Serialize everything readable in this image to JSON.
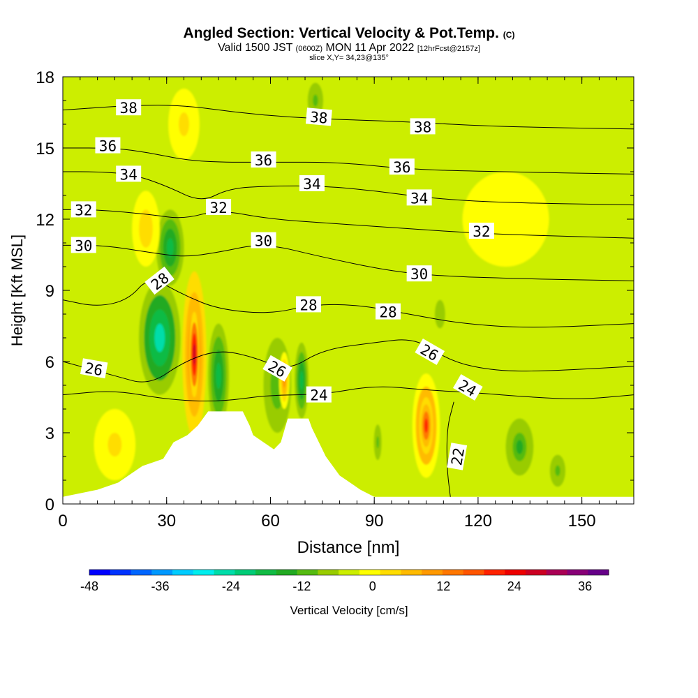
{
  "header": {
    "title_main": "Angled Section: Vertical Velocity & Pot.Temp.",
    "title_suffix": "(C)",
    "valid_prefix": "Valid 1500 JST",
    "valid_utc": "(0600Z)",
    "valid_date": "MON 11 Apr 2022",
    "valid_fcst": "[12hrFcst@2157z]",
    "slice": "slice X,Y= 34,23@135°"
  },
  "chart_data": {
    "type": "heatmap",
    "xlabel": "Distance [nm]",
    "ylabel": "Height [Kft MSL]",
    "xlim": [
      0,
      165
    ],
    "ylim": [
      0,
      18
    ],
    "x_ticks": [
      0,
      30,
      60,
      90,
      120,
      150
    ],
    "y_ticks": [
      0,
      3,
      6,
      9,
      12,
      15,
      18
    ],
    "background_value_cm_s": 2,
    "vertical_velocity_cells": [
      {
        "x": 28,
        "y": 7.0,
        "rx": 6,
        "ry": 2.4,
        "w": -22
      },
      {
        "x": 31,
        "y": 10.8,
        "rx": 4,
        "ry": 1.6,
        "w": -14
      },
      {
        "x": 45,
        "y": 5.4,
        "rx": 3,
        "ry": 2.2,
        "w": -16
      },
      {
        "x": 62,
        "y": 5.0,
        "rx": 4,
        "ry": 2.0,
        "w": -8
      },
      {
        "x": 69,
        "y": 5.2,
        "rx": 2,
        "ry": 1.6,
        "w": -16
      },
      {
        "x": 109,
        "y": 8.0,
        "rx": 2,
        "ry": 0.8,
        "w": -4
      },
      {
        "x": 132,
        "y": 2.4,
        "rx": 4,
        "ry": 1.2,
        "w": -10
      },
      {
        "x": 143,
        "y": 1.4,
        "rx": 3,
        "ry": 0.9,
        "w": -6
      },
      {
        "x": 91,
        "y": 2.6,
        "rx": 1.5,
        "ry": 1.0,
        "w": -6
      },
      {
        "x": 38,
        "y": 6.3,
        "rx": 3.5,
        "ry": 3.5,
        "w": 28
      },
      {
        "x": 38,
        "y": 6.3,
        "rx": 1.5,
        "ry": 1.8,
        "w": 38
      },
      {
        "x": 24,
        "y": 11.6,
        "rx": 4,
        "ry": 1.6,
        "w": 10
      },
      {
        "x": 35,
        "y": 16.0,
        "rx": 6,
        "ry": 2.0,
        "w": 8
      },
      {
        "x": 64,
        "y": 5.2,
        "rx": 1.5,
        "ry": 1.2,
        "w": 18
      },
      {
        "x": 105,
        "y": 3.3,
        "rx": 4,
        "ry": 2.2,
        "w": 24
      },
      {
        "x": 105,
        "y": 3.3,
        "rx": 2,
        "ry": 1.2,
        "w": 28
      },
      {
        "x": 15,
        "y": 2.5,
        "rx": 8,
        "ry": 2.0,
        "w": 8
      },
      {
        "x": 128,
        "y": 12.0,
        "rx": 25,
        "ry": 4,
        "w": 5
      },
      {
        "x": 73,
        "y": 17.0,
        "rx": 3,
        "ry": 1.0,
        "w": -6
      }
    ],
    "terrain_kft": [
      [
        0,
        0.3
      ],
      [
        10,
        0.6
      ],
      [
        16,
        0.9
      ],
      [
        20,
        1.3
      ],
      [
        23,
        1.6
      ],
      [
        29,
        1.9
      ],
      [
        32,
        2.6
      ],
      [
        36,
        2.9
      ],
      [
        39,
        3.3
      ],
      [
        42,
        3.9
      ],
      [
        52,
        3.9
      ],
      [
        54,
        3.3
      ],
      [
        55,
        2.9
      ],
      [
        58,
        2.6
      ],
      [
        61,
        2.3
      ],
      [
        63,
        2.6
      ],
      [
        65,
        3.6
      ],
      [
        71,
        3.6
      ],
      [
        72,
        3.2
      ],
      [
        74,
        2.6
      ],
      [
        76,
        2.0
      ],
      [
        78,
        1.6
      ],
      [
        80,
        1.2
      ],
      [
        83,
        0.9
      ],
      [
        86,
        0.6
      ],
      [
        90,
        0.3
      ],
      [
        165,
        0.3
      ]
    ],
    "theta_contours": [
      {
        "label": "22",
        "points": [
          [
            112,
            0.3
          ],
          [
            111,
            1.5
          ],
          [
            111,
            3.2
          ],
          [
            113,
            4.3
          ]
        ]
      },
      {
        "label": "24",
        "points": [
          [
            0,
            4.6
          ],
          [
            15,
            4.8
          ],
          [
            30,
            4.4
          ],
          [
            45,
            4.3
          ],
          [
            60,
            4.6
          ],
          [
            75,
            4.6
          ],
          [
            90,
            5.0
          ],
          [
            105,
            4.8
          ],
          [
            118,
            4.7
          ],
          [
            135,
            4.5
          ],
          [
            150,
            4.4
          ],
          [
            165,
            4.6
          ]
        ]
      },
      {
        "label": "26",
        "points": [
          [
            0,
            6.0
          ],
          [
            15,
            5.4
          ],
          [
            25,
            5.0
          ],
          [
            35,
            6.0
          ],
          [
            45,
            6.5
          ],
          [
            55,
            6.2
          ],
          [
            65,
            5.6
          ],
          [
            75,
            6.5
          ],
          [
            90,
            6.8
          ],
          [
            102,
            7.0
          ],
          [
            112,
            6.0
          ],
          [
            125,
            5.6
          ],
          [
            140,
            5.6
          ],
          [
            165,
            5.8
          ]
        ]
      },
      {
        "label": "28",
        "points": [
          [
            0,
            8.6
          ],
          [
            10,
            8.3
          ],
          [
            19,
            8.6
          ],
          [
            25,
            9.6
          ],
          [
            35,
            8.8
          ],
          [
            45,
            8.2
          ],
          [
            60,
            8.0
          ],
          [
            72,
            8.4
          ],
          [
            85,
            8.4
          ],
          [
            100,
            8.0
          ],
          [
            115,
            7.6
          ],
          [
            135,
            7.4
          ],
          [
            165,
            7.6
          ]
        ]
      },
      {
        "label": "30",
        "points": [
          [
            0,
            10.9
          ],
          [
            12,
            10.9
          ],
          [
            25,
            10.6
          ],
          [
            35,
            10.4
          ],
          [
            45,
            10.6
          ],
          [
            58,
            11.0
          ],
          [
            75,
            10.4
          ],
          [
            95,
            9.8
          ],
          [
            110,
            9.6
          ],
          [
            130,
            9.5
          ],
          [
            165,
            9.4
          ]
        ]
      },
      {
        "label": "32",
        "points": [
          [
            0,
            12.4
          ],
          [
            10,
            12.4
          ],
          [
            25,
            12.2
          ],
          [
            35,
            12.0
          ],
          [
            45,
            12.4
          ],
          [
            60,
            12.0
          ],
          [
            80,
            11.8
          ],
          [
            100,
            11.6
          ],
          [
            120,
            11.4
          ],
          [
            140,
            11.3
          ],
          [
            165,
            11.2
          ]
        ]
      },
      {
        "label": "34",
        "points": [
          [
            0,
            14.0
          ],
          [
            10,
            14.0
          ],
          [
            20,
            13.9
          ],
          [
            30,
            13.4
          ],
          [
            40,
            12.7
          ],
          [
            48,
            13.3
          ],
          [
            60,
            13.4
          ],
          [
            75,
            13.4
          ],
          [
            90,
            13.2
          ],
          [
            105,
            12.9
          ],
          [
            125,
            12.7
          ],
          [
            165,
            12.6
          ]
        ]
      },
      {
        "label": "36",
        "points": [
          [
            0,
            15.0
          ],
          [
            15,
            15.0
          ],
          [
            25,
            14.8
          ],
          [
            35,
            14.5
          ],
          [
            45,
            14.4
          ],
          [
            60,
            14.4
          ],
          [
            80,
            14.4
          ],
          [
            100,
            14.1
          ],
          [
            125,
            14.0
          ],
          [
            165,
            13.9
          ]
        ]
      },
      {
        "label": "38",
        "points": [
          [
            0,
            16.6
          ],
          [
            20,
            16.8
          ],
          [
            35,
            16.8
          ],
          [
            50,
            16.5
          ],
          [
            65,
            16.3
          ],
          [
            80,
            16.2
          ],
          [
            100,
            16.1
          ],
          [
            125,
            15.9
          ],
          [
            165,
            15.8
          ]
        ]
      }
    ],
    "theta_labels": [
      {
        "text": "38",
        "x": 19,
        "y": 16.7,
        "angle": 0
      },
      {
        "text": "38",
        "x": 74,
        "y": 16.3,
        "angle": 5
      },
      {
        "text": "38",
        "x": 104,
        "y": 15.9,
        "angle": 0
      },
      {
        "text": "36",
        "x": 13,
        "y": 15.1,
        "angle": 0
      },
      {
        "text": "36",
        "x": 58,
        "y": 14.5,
        "angle": 0
      },
      {
        "text": "36",
        "x": 98,
        "y": 14.2,
        "angle": 0
      },
      {
        "text": "34",
        "x": 19,
        "y": 13.9,
        "angle": 0
      },
      {
        "text": "34",
        "x": 72,
        "y": 13.5,
        "angle": 0
      },
      {
        "text": "34",
        "x": 103,
        "y": 12.9,
        "angle": 0
      },
      {
        "text": "32",
        "x": 6,
        "y": 12.4,
        "angle": 0
      },
      {
        "text": "32",
        "x": 45,
        "y": 12.5,
        "angle": 0
      },
      {
        "text": "32",
        "x": 121,
        "y": 11.5,
        "angle": 0
      },
      {
        "text": "30",
        "x": 6,
        "y": 10.9,
        "angle": 0
      },
      {
        "text": "30",
        "x": 58,
        "y": 11.1,
        "angle": 0
      },
      {
        "text": "30",
        "x": 103,
        "y": 9.7,
        "angle": 0
      },
      {
        "text": "28",
        "x": 28,
        "y": 9.4,
        "angle": -38
      },
      {
        "text": "28",
        "x": 71,
        "y": 8.4,
        "angle": 0
      },
      {
        "text": "28",
        "x": 94,
        "y": 8.1,
        "angle": 0
      },
      {
        "text": "26",
        "x": 9,
        "y": 5.7,
        "angle": 10
      },
      {
        "text": "26",
        "x": 62,
        "y": 5.7,
        "angle": 30
      },
      {
        "text": "26",
        "x": 106,
        "y": 6.4,
        "angle": 30
      },
      {
        "text": "24",
        "x": 74,
        "y": 4.6,
        "angle": 0
      },
      {
        "text": "24",
        "x": 117,
        "y": 4.9,
        "angle": 30
      },
      {
        "text": "22",
        "x": 114,
        "y": 2.0,
        "angle": -80
      }
    ],
    "colorbar": {
      "label": "Vertical Velocity [cm/s]",
      "min": -48,
      "max": 40,
      "step": 4,
      "tick_values": [
        -48,
        -36,
        -24,
        -12,
        0,
        12,
        24,
        36
      ],
      "colors": [
        "#0000ff",
        "#0033ff",
        "#0066ff",
        "#0099ff",
        "#00ccff",
        "#00eeee",
        "#00ddaa",
        "#00cc77",
        "#11bb44",
        "#22aa22",
        "#55bb11",
        "#99cc00",
        "#ccee00",
        "#ffff00",
        "#ffdd00",
        "#ffbb00",
        "#ff9900",
        "#ff7700",
        "#ff5500",
        "#ff2200",
        "#ee0000",
        "#cc0022",
        "#aa0055",
        "#880077",
        "#660088"
      ]
    }
  }
}
